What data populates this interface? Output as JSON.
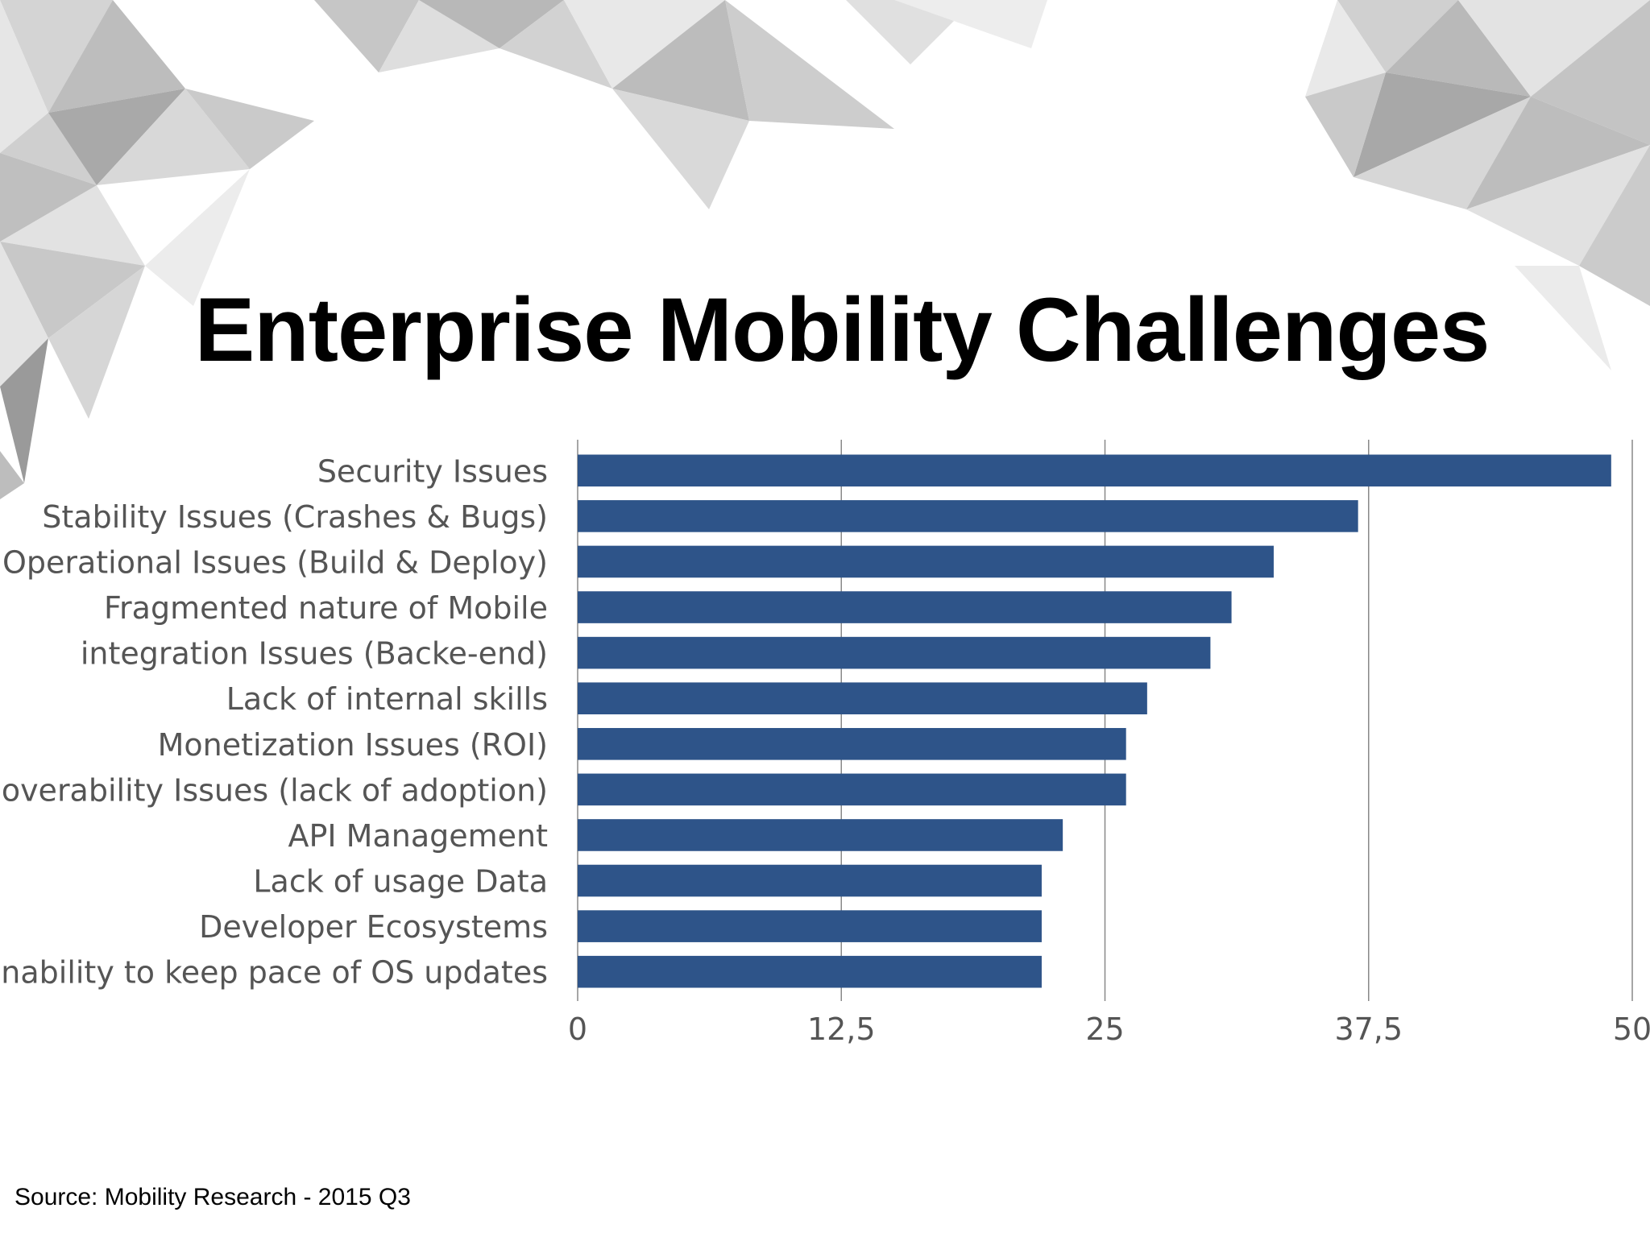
{
  "title": "Enterprise Mobility Challenges",
  "source": "Source: Mobility Research - 2015 Q3",
  "colors": {
    "bar": "#2e5489",
    "grid": "#888888",
    "label": "#555555"
  },
  "chart_data": {
    "type": "bar",
    "orientation": "horizontal",
    "title": "Enterprise Mobility Challenges",
    "categories": [
      "Security Issues",
      "Stability Issues (Crashes & Bugs)",
      "Operational Issues (Build & Deploy)",
      "Fragmented nature of Mobile",
      "integration Issues (Backe-end)",
      "Lack of internal skills",
      "Monetization Issues (ROI)",
      "Discoverability Issues (lack of adoption)",
      "API Management",
      "Lack of usage Data",
      "Developer Ecosystems",
      "Inability to keep pace of OS updates"
    ],
    "values": [
      49,
      37,
      33,
      31,
      30,
      27,
      26,
      26,
      23,
      22,
      22,
      22
    ],
    "xlim": [
      0,
      50
    ],
    "xticks": [
      "0",
      "12,5",
      "25",
      "37,5",
      "50"
    ],
    "tick_values": [
      0,
      12.5,
      25,
      37.5,
      50
    ],
    "xlabel": "",
    "ylabel": "",
    "grid": true
  }
}
